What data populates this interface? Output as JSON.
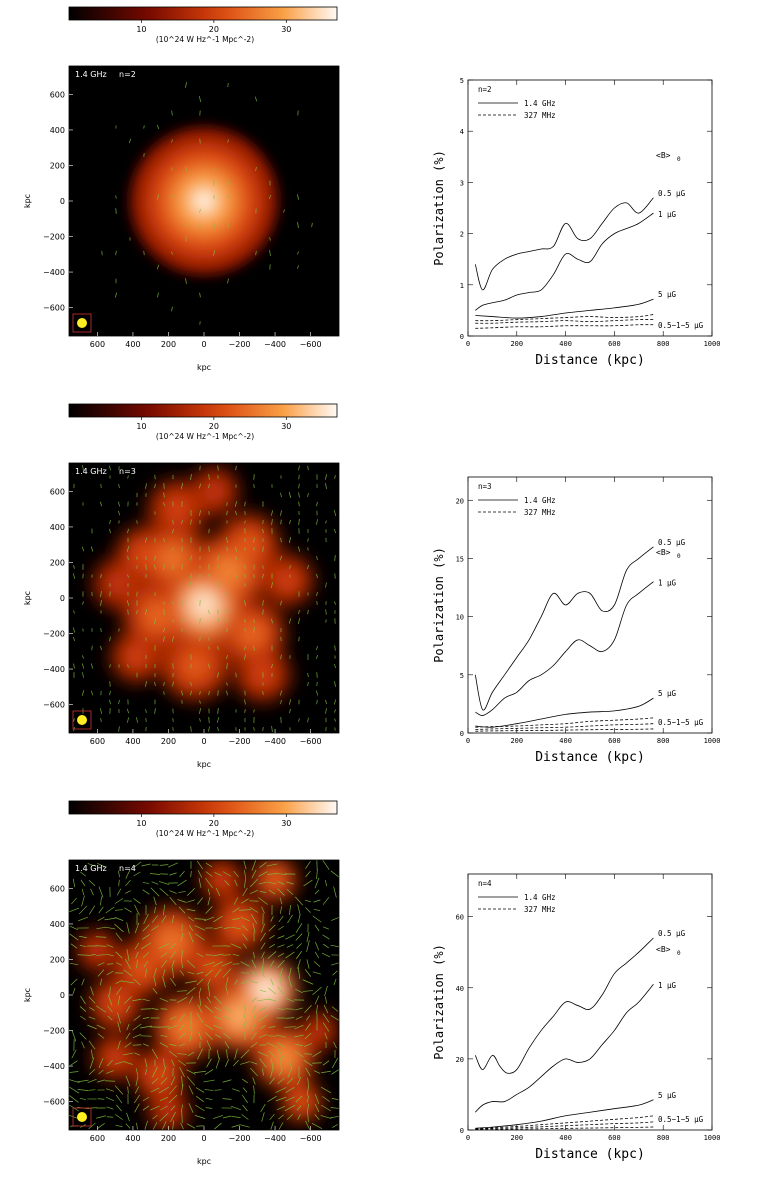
{
  "colorbar": {
    "ticks": [
      "10",
      "20",
      "30"
    ],
    "tick_values": [
      10,
      20,
      30
    ],
    "range": [
      0,
      37
    ],
    "unit_label": "(10^24 W Hz^-1 Mpc^-2)"
  },
  "map_axes": {
    "x_ticks": [
      "600",
      "400",
      "200",
      "0",
      "−200",
      "−400",
      "−600"
    ],
    "x_values": [
      600,
      400,
      200,
      0,
      -200,
      -400,
      -600
    ],
    "y_ticks": [
      "600",
      "400",
      "200",
      "0",
      "−200",
      "−400",
      "−600"
    ],
    "y_values": [
      600,
      400,
      200,
      0,
      -200,
      -400,
      -600
    ],
    "xlabel": "kpc",
    "ylabel": "kpc",
    "range": [
      -760,
      760
    ]
  },
  "plot_common": {
    "xlabel": "Distance (kpc)",
    "ylabel": "Polarization (%)",
    "x_ticks": [
      "0",
      "200",
      "400",
      "600",
      "800",
      "1000"
    ],
    "x_values": [
      0,
      200,
      400,
      600,
      800,
      1000
    ],
    "legend_solid": "1.4 GHz",
    "legend_dashed": "327 MHz",
    "b_label": "<B>",
    "b_sub": "0",
    "label_05": "0.5 μG",
    "label_1": "1 μG",
    "label_5": "5 μG",
    "label_dashed": "0.5−1−5 μG"
  },
  "panels": [
    {
      "map_freq": "1.4 GHz",
      "map_n": "n=2",
      "plot_n": "n=2",
      "vector_density": 0.25,
      "emission": "smooth",
      "chart_data": {
        "type": "line",
        "title": "n=2",
        "xlabel": "Distance (kpc)",
        "ylabel": "Polarization (%)",
        "xlim": [
          0,
          1000
        ],
        "ylim": [
          0,
          5
        ],
        "y_ticks": [
          0,
          1,
          2,
          3,
          4,
          5
        ],
        "y_tick_labels": [
          "0",
          "1",
          "2",
          "3",
          "4",
          "5"
        ],
        "series": [
          {
            "name": "0.5 μG 1.4 GHz",
            "style": "solid",
            "x": [
              30,
              60,
              100,
              150,
              200,
              250,
              300,
              350,
              400,
              450,
              500,
              550,
              600,
              650,
              700,
              760
            ],
            "y": [
              1.4,
              0.9,
              1.3,
              1.5,
              1.6,
              1.65,
              1.7,
              1.75,
              2.2,
              1.9,
              1.9,
              2.2,
              2.5,
              2.6,
              2.4,
              2.7
            ]
          },
          {
            "name": "1 μG 1.4 GHz",
            "style": "solid",
            "x": [
              30,
              60,
              100,
              150,
              200,
              250,
              300,
              350,
              400,
              450,
              500,
              550,
              600,
              650,
              700,
              760
            ],
            "y": [
              0.5,
              0.6,
              0.65,
              0.7,
              0.8,
              0.85,
              0.9,
              1.2,
              1.6,
              1.5,
              1.45,
              1.8,
              2.0,
              2.1,
              2.2,
              2.4
            ]
          },
          {
            "name": "5 μG 1.4 GHz",
            "style": "solid",
            "x": [
              30,
              100,
              200,
              300,
              400,
              500,
              600,
              700,
              760
            ],
            "y": [
              0.4,
              0.38,
              0.35,
              0.38,
              0.45,
              0.5,
              0.55,
              0.62,
              0.72
            ]
          },
          {
            "name": "0.5 μG 327 MHz",
            "style": "dashed",
            "x": [
              30,
              100,
              200,
              300,
              400,
              500,
              600,
              700,
              760
            ],
            "y": [
              0.3,
              0.3,
              0.32,
              0.34,
              0.36,
              0.38,
              0.36,
              0.38,
              0.42
            ]
          },
          {
            "name": "1 μG 327 MHz",
            "style": "dashed",
            "x": [
              30,
              100,
              200,
              300,
              400,
              500,
              600,
              700,
              760
            ],
            "y": [
              0.25,
              0.25,
              0.27,
              0.28,
              0.3,
              0.28,
              0.3,
              0.32,
              0.32
            ]
          },
          {
            "name": "5 μG 327 MHz",
            "style": "dashed",
            "x": [
              30,
              100,
              200,
              300,
              400,
              500,
              600,
              700,
              760
            ],
            "y": [
              0.15,
              0.16,
              0.18,
              0.18,
              0.2,
              0.2,
              0.2,
              0.22,
              0.22
            ]
          }
        ]
      }
    },
    {
      "map_freq": "1.4 GHz",
      "map_n": "n=3",
      "plot_n": "n=3",
      "vector_density": 0.45,
      "emission": "clumpy",
      "chart_data": {
        "type": "line",
        "title": "n=3",
        "xlabel": "Distance (kpc)",
        "ylabel": "Polarization (%)",
        "xlim": [
          0,
          1000
        ],
        "ylim": [
          0,
          22
        ],
        "y_ticks": [
          0,
          5,
          10,
          15,
          20
        ],
        "y_tick_labels": [
          "0",
          "5",
          "10",
          "15",
          "20"
        ],
        "series": [
          {
            "name": "0.5 μG 1.4 GHz",
            "style": "solid",
            "x": [
              30,
              60,
              100,
              150,
              200,
              250,
              300,
              350,
              400,
              450,
              500,
              550,
              600,
              650,
              700,
              760
            ],
            "y": [
              5,
              2,
              3.5,
              5,
              6.5,
              8,
              10,
              12,
              11,
              12,
              12,
              10.5,
              11,
              14,
              15,
              16
            ]
          },
          {
            "name": "1 μG 1.4 GHz",
            "style": "solid",
            "x": [
              30,
              60,
              100,
              150,
              200,
              250,
              300,
              350,
              400,
              450,
              500,
              550,
              600,
              650,
              700,
              760
            ],
            "y": [
              1.8,
              1.5,
              2,
              3,
              3.5,
              4.5,
              5,
              5.8,
              7,
              8,
              7.5,
              7,
              8,
              11,
              12,
              13
            ]
          },
          {
            "name": "5 μG 1.4 GHz",
            "style": "solid",
            "x": [
              30,
              100,
              200,
              300,
              400,
              500,
              600,
              700,
              760
            ],
            "y": [
              0.6,
              0.5,
              0.8,
              1.2,
              1.6,
              1.8,
              1.9,
              2.3,
              3.0
            ]
          },
          {
            "name": "0.5 μG 327 MHz",
            "style": "dashed",
            "x": [
              30,
              100,
              200,
              300,
              400,
              500,
              600,
              700,
              760
            ],
            "y": [
              0.5,
              0.55,
              0.6,
              0.7,
              0.8,
              1.0,
              1.1,
              1.2,
              1.3
            ]
          },
          {
            "name": "1 μG 327 MHz",
            "style": "dashed",
            "x": [
              30,
              100,
              200,
              300,
              400,
              500,
              600,
              700,
              760
            ],
            "y": [
              0.3,
              0.35,
              0.4,
              0.45,
              0.5,
              0.6,
              0.7,
              0.75,
              0.8
            ]
          },
          {
            "name": "5 μG 327 MHz",
            "style": "dashed",
            "x": [
              30,
              100,
              200,
              300,
              400,
              500,
              600,
              700,
              760
            ],
            "y": [
              0.15,
              0.18,
              0.2,
              0.22,
              0.25,
              0.28,
              0.3,
              0.32,
              0.35
            ]
          }
        ]
      }
    },
    {
      "map_freq": "1.4 GHz",
      "map_n": "n=4",
      "plot_n": "n=4",
      "vector_density": 0.75,
      "emission": "filamentary",
      "chart_data": {
        "type": "line",
        "title": "n=4",
        "xlabel": "Distance (kpc)",
        "ylabel": "Polarization (%)",
        "xlim": [
          0,
          1000
        ],
        "ylim": [
          0,
          72
        ],
        "y_ticks": [
          0,
          20,
          40,
          60
        ],
        "y_tick_labels": [
          "0",
          "20",
          "40",
          "60"
        ],
        "series": [
          {
            "name": "0.5 μG 1.4 GHz",
            "style": "solid",
            "x": [
              30,
              60,
              100,
              130,
              160,
              200,
              250,
              300,
              350,
              400,
              450,
              500,
              550,
              600,
              650,
              700,
              760
            ],
            "y": [
              21,
              17,
              21,
              18,
              16,
              17,
              23,
              28,
              32,
              36,
              35,
              34,
              38,
              44,
              47,
              50,
              54
            ]
          },
          {
            "name": "1 μG 1.4 GHz",
            "style": "solid",
            "x": [
              30,
              60,
              100,
              150,
              200,
              250,
              300,
              350,
              400,
              450,
              500,
              550,
              600,
              650,
              700,
              760
            ],
            "y": [
              5,
              7,
              8,
              8,
              10,
              12,
              15,
              18,
              20,
              19,
              20,
              24,
              28,
              33,
              36,
              41
            ]
          },
          {
            "name": "5 μG 1.4 GHz",
            "style": "solid",
            "x": [
              30,
              100,
              200,
              300,
              400,
              500,
              600,
              700,
              760
            ],
            "y": [
              0.5,
              0.8,
              1.5,
              2.5,
              4,
              5,
              6,
              7,
              8.5
            ]
          },
          {
            "name": "0.5 μG 327 MHz",
            "style": "dashed",
            "x": [
              30,
              100,
              200,
              300,
              400,
              500,
              600,
              700,
              760
            ],
            "y": [
              0.3,
              0.6,
              1,
              1.5,
              2,
              2.5,
              3,
              3.5,
              4
            ]
          },
          {
            "name": "1 μG 327 MHz",
            "style": "dashed",
            "x": [
              30,
              100,
              200,
              300,
              400,
              500,
              600,
              700,
              760
            ],
            "y": [
              0.2,
              0.4,
              0.6,
              0.9,
              1.2,
              1.5,
              1.8,
              2,
              2.3
            ]
          },
          {
            "name": "5 μG 327 MHz",
            "style": "dashed",
            "x": [
              30,
              100,
              200,
              300,
              400,
              500,
              600,
              700,
              760
            ],
            "y": [
              0.1,
              0.15,
              0.25,
              0.35,
              0.45,
              0.55,
              0.65,
              0.75,
              0.85
            ]
          }
        ]
      }
    }
  ]
}
